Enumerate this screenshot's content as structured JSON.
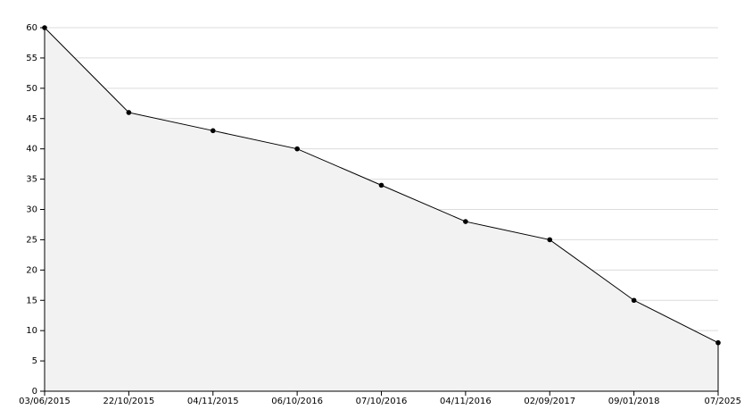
{
  "chart_data": {
    "type": "area",
    "categories": [
      "03/06/2015",
      "22/10/2015",
      "04/11/2015",
      "06/10/2016",
      "07/10/2016",
      "04/11/2016",
      "02/09/2017",
      "09/01/2018",
      "07/2025"
    ],
    "values": [
      60,
      46,
      43,
      40,
      34,
      28,
      25,
      15,
      8
    ],
    "color": "#000000",
    "fill": "#f2f2f2",
    "ylim": [
      0,
      60
    ],
    "yticks": [
      0,
      5,
      10,
      15,
      20,
      25,
      30,
      35,
      40,
      45,
      50,
      55,
      60
    ],
    "grid": true
  }
}
